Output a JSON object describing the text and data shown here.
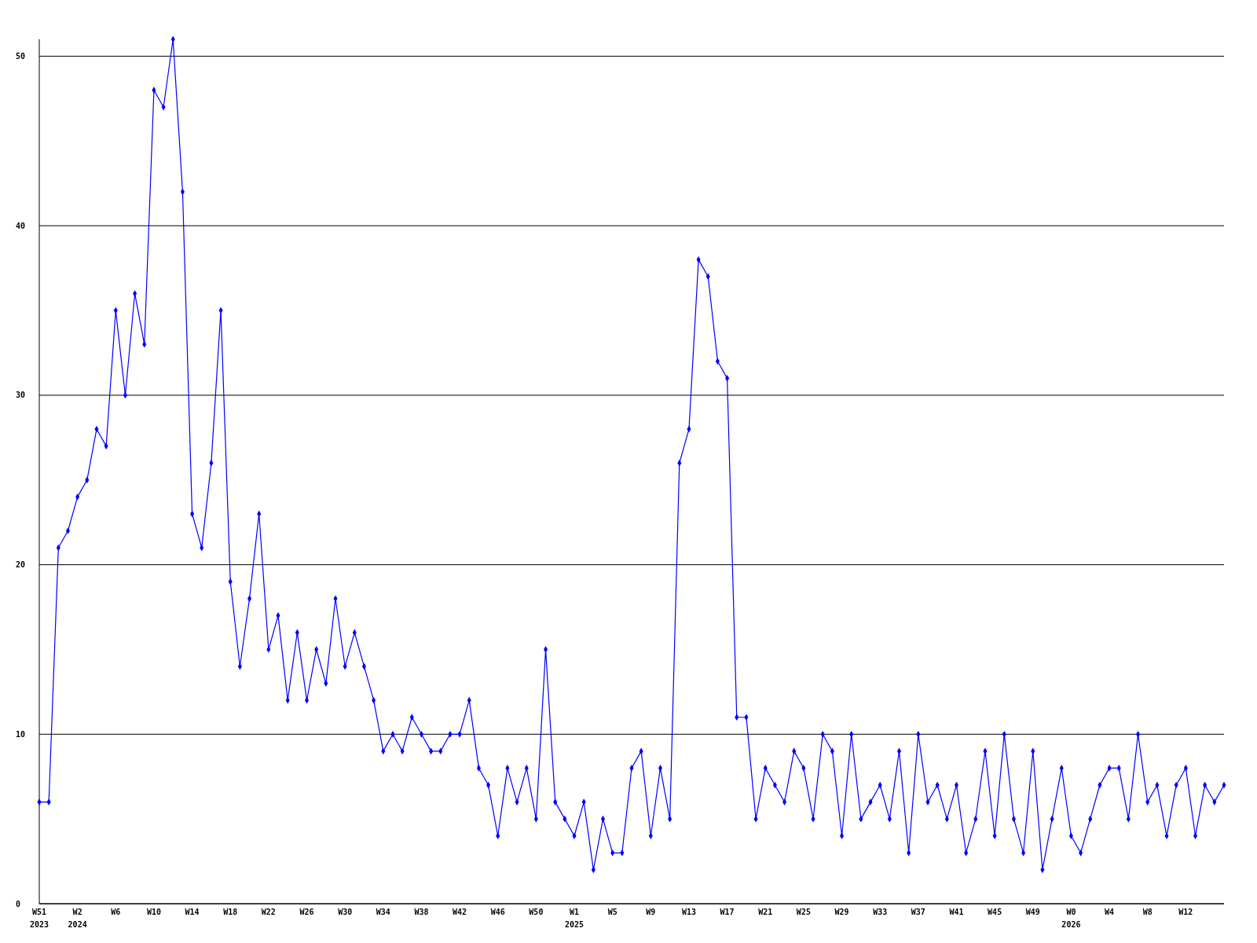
{
  "chart_data": {
    "type": "line",
    "categories": [
      "W51\n2023",
      null,
      null,
      null,
      "W2\n2024",
      null,
      null,
      null,
      "W6",
      null,
      null,
      null,
      "W10",
      null,
      null,
      null,
      "W14",
      null,
      null,
      null,
      "W18",
      null,
      null,
      null,
      "W22",
      null,
      null,
      null,
      "W26",
      null,
      null,
      null,
      "W30",
      null,
      null,
      null,
      "W34",
      null,
      null,
      null,
      "W38",
      null,
      null,
      null,
      "W42",
      null,
      null,
      null,
      "W46",
      null,
      null,
      null,
      "W50",
      null,
      null,
      null,
      "W1\n2025",
      null,
      null,
      null,
      "W5",
      null,
      null,
      null,
      "W9",
      null,
      null,
      null,
      "W13",
      null,
      null,
      null,
      "W17",
      null,
      null,
      null,
      "W21",
      null,
      null,
      null,
      "W25",
      null,
      null,
      null,
      "W29",
      null,
      null,
      null,
      "W33",
      null,
      null,
      null,
      "W37",
      null,
      null,
      null,
      "W41",
      null,
      null,
      null,
      "W45",
      null,
      null,
      null,
      "W49",
      null,
      null,
      null,
      "W0\n2026",
      null,
      null,
      null,
      "W4",
      null,
      null,
      null,
      "W8",
      null,
      null,
      null,
      "W12",
      null,
      null,
      null,
      null
    ],
    "values": [
      6,
      6,
      21,
      22,
      24,
      25,
      28,
      27,
      35,
      30,
      36,
      33,
      48,
      47,
      51,
      42,
      23,
      21,
      26,
      35,
      19,
      14,
      18,
      23,
      15,
      17,
      12,
      16,
      12,
      15,
      13,
      18,
      14,
      16,
      14,
      12,
      9,
      10,
      9,
      11,
      10,
      9,
      9,
      10,
      10,
      12,
      8,
      7,
      4,
      8,
      6,
      8,
      5,
      15,
      6,
      5,
      4,
      6,
      2,
      5,
      3,
      3,
      8,
      9,
      4,
      8,
      5,
      26,
      28,
      38,
      37,
      32,
      31,
      11,
      11,
      5,
      8,
      7,
      6,
      9,
      8,
      5,
      10,
      9,
      4,
      10,
      5,
      6,
      7,
      5,
      9,
      3,
      10,
      6,
      7,
      5,
      7,
      3,
      5,
      9,
      4,
      10,
      5,
      3,
      9,
      2,
      5,
      8,
      4,
      3,
      5,
      7,
      8,
      8,
      5,
      10,
      6,
      7,
      4,
      7,
      8,
      4,
      7,
      6,
      7
    ],
    "color": "#0000ff",
    "ylim": [
      0,
      51
    ],
    "yticks": [
      0,
      10,
      20,
      30,
      40,
      50
    ],
    "grid": "y",
    "marker": "diamond"
  }
}
